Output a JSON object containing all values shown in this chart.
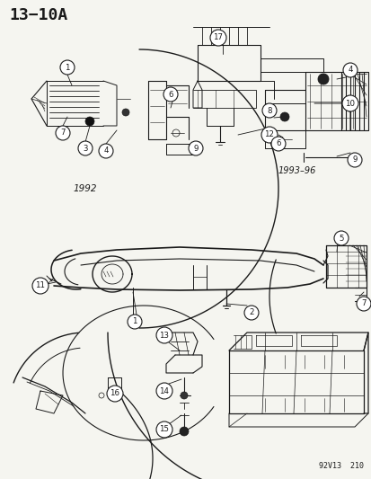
{
  "title": "13−10A",
  "background_color": "#f5f5f0",
  "line_color": "#1a1a1a",
  "watermark": "92V13  210",
  "year_1992": "1992",
  "year_1993": "1993–96",
  "figsize": [
    4.14,
    5.33
  ],
  "dpi": 100
}
